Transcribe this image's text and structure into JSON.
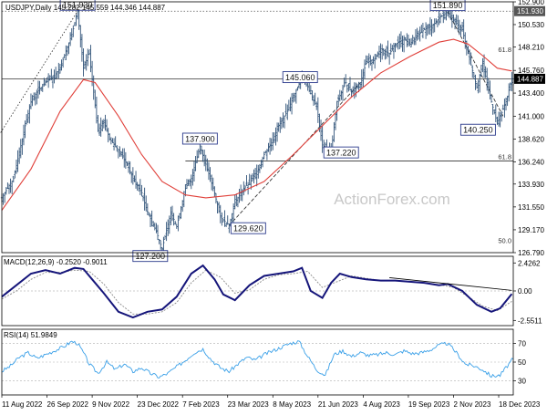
{
  "chart_data": [
    {
      "type": "line",
      "panel": "price",
      "title": "USDJPY,Daily  145.282 145.559 144.346 144.887",
      "symbol": "USDJPY",
      "timeframe": "Daily",
      "ohlc_readout": {
        "open": 145.282,
        "high": 145.559,
        "low": 144.346,
        "close": 144.887
      },
      "ylim": [
        126.79,
        152.9
      ],
      "yticks": [
        "152.900",
        "150.530",
        "148.210",
        "145.760",
        "143.400",
        "141.000",
        "138.620",
        "136.240",
        "133.930",
        "131.550",
        "129.170",
        "126.790"
      ],
      "xticks": [
        "11 Aug 2022",
        "26 Sep 2022",
        "9 Nov 2022",
        "23 Dec 2022",
        "7 Feb 2023",
        "23 Mar 2023",
        "8 May 2023",
        "21 Jun 2023",
        "4 Aug 2023",
        "19 Sep 2023",
        "2 Nov 2023",
        "18 Dec 2023"
      ],
      "series": [
        {
          "role": "price",
          "x": [
            0,
            8,
            16,
            20,
            24,
            30,
            36,
            40,
            44,
            48,
            52,
            56,
            60,
            66,
            70,
            74,
            80,
            86,
            90,
            96,
            100,
            106,
            110,
            116,
            120,
            126,
            130,
            136,
            140,
            146,
            150,
            156,
            160,
            166,
            170,
            176,
            180,
            186,
            190,
            196,
            200,
            206,
            210,
            216,
            220,
            226,
            230,
            236,
            240,
            246,
            250,
            256,
            260,
            266,
            270,
            276,
            280,
            286,
            290,
            296,
            300,
            306,
            310,
            316,
            320,
            326,
            330,
            336,
            340,
            346,
            350
          ],
          "y": [
            132.5,
            134.5,
            140.0,
            142.5,
            143.5,
            144.5,
            145.2,
            146.0,
            147.8,
            149.5,
            151.93,
            146.0,
            147.5,
            139.5,
            140.5,
            138.6,
            137.5,
            136.0,
            134.5,
            133.0,
            131.0,
            129.0,
            127.2,
            131.0,
            129.5,
            133.5,
            134.5,
            137.9,
            136.0,
            133.0,
            130.5,
            129.62,
            132.0,
            133.5,
            134.0,
            135.5,
            137.0,
            138.5,
            140.0,
            141.5,
            143.0,
            145.06,
            144.0,
            142.0,
            138.0,
            137.22,
            142.5,
            144.5,
            143.5,
            144.5,
            146.5,
            147.0,
            148.0,
            147.5,
            148.5,
            149.0,
            148.5,
            149.5,
            150.0,
            150.5,
            151.2,
            151.89,
            151.0,
            150.0,
            147.5,
            144.0,
            146.5,
            142.5,
            140.25,
            142.5,
            144.887
          ]
        },
        {
          "role": "moving-average",
          "x": [
            0,
            20,
            40,
            56,
            64,
            80,
            96,
            110,
            126,
            140,
            160,
            180,
            200,
            220,
            240,
            260,
            280,
            300,
            310,
            320,
            330,
            340,
            350
          ],
          "y": [
            131.2,
            135.5,
            141.5,
            144.8,
            144.5,
            141.0,
            137.0,
            134.2,
            132.8,
            132.5,
            132.8,
            134.2,
            137.0,
            140.0,
            143.0,
            145.5,
            147.2,
            148.7,
            149.0,
            148.5,
            147.3,
            146.0,
            145.7
          ]
        }
      ],
      "annotations": [
        {
          "label": "151.930",
          "x": 52,
          "y": 151.93
        },
        {
          "label": "137.900",
          "x": 136,
          "y": 137.9
        },
        {
          "label": "127.200",
          "x": 110,
          "y": 127.2
        },
        {
          "label": "129.620",
          "x": 156,
          "y": 129.62
        },
        {
          "label": "145.060",
          "x": 206,
          "y": 145.06
        },
        {
          "label": "137.220",
          "x": 226,
          "y": 137.22
        },
        {
          "label": "151.890",
          "x": 306,
          "y": 151.89
        },
        {
          "label": "140.250",
          "x": 340,
          "y": 140.25
        }
      ],
      "horizontal_levels": [
        {
          "value": 151.93,
          "label": "151.930",
          "style": "dotted"
        },
        {
          "value": 144.887,
          "label": "144.887",
          "style": "solid"
        },
        {
          "value": 136.34,
          "style": "solid"
        }
      ],
      "fib_labels": [
        {
          "label": "61.8",
          "value": 147.5
        },
        {
          "label": "61.8",
          "value": 136.34
        },
        {
          "label": "50.0",
          "value": 127.6
        }
      ],
      "trendlines": [
        {
          "style": "dotted",
          "from": {
            "x": -2,
            "y": 139.0
          },
          "to": {
            "x": 52,
            "y": 151.93
          }
        },
        {
          "style": "dashed",
          "from": {
            "x": 156,
            "y": 129.62
          },
          "to": {
            "x": 246,
            "y": 144.5
          }
        },
        {
          "style": "dashed",
          "from": {
            "x": 306,
            "y": 151.89
          },
          "to": {
            "x": 344,
            "y": 141.0
          }
        }
      ],
      "watermark": "ActionForex.com"
    },
    {
      "type": "line",
      "panel": "macd",
      "title": "MACD(12,26,9) -0.2520 -0.9011",
      "ylim": [
        -3.0,
        3.0
      ],
      "yticks": [
        "2.4262",
        "0.00",
        "-2.5511"
      ],
      "series": [
        {
          "role": "macd",
          "x": [
            0,
            10,
            20,
            30,
            40,
            50,
            56,
            62,
            70,
            80,
            90,
            100,
            110,
            120,
            130,
            138,
            146,
            152,
            160,
            170,
            180,
            190,
            200,
            206,
            212,
            220,
            226,
            232,
            240,
            250,
            260,
            270,
            280,
            290,
            300,
            306,
            316,
            326,
            336,
            342,
            350
          ],
          "y": [
            -0.5,
            0.5,
            1.5,
            1.8,
            1.5,
            2.0,
            1.9,
            1.0,
            -0.2,
            -1.8,
            -2.3,
            -1.8,
            -1.6,
            -0.5,
            1.5,
            2.2,
            1.0,
            -0.3,
            -0.8,
            0.5,
            1.3,
            1.5,
            1.7,
            2.0,
            0.0,
            -0.6,
            0.7,
            1.5,
            1.2,
            1.0,
            0.9,
            0.9,
            0.8,
            0.7,
            0.5,
            0.6,
            0.0,
            -1.2,
            -1.8,
            -1.5,
            -0.252
          ]
        },
        {
          "role": "signal",
          "x": [
            0,
            10,
            20,
            30,
            40,
            50,
            60,
            70,
            80,
            90,
            100,
            110,
            120,
            130,
            140,
            150,
            160,
            170,
            180,
            190,
            200,
            210,
            220,
            230,
            240,
            250,
            260,
            270,
            280,
            290,
            300,
            310,
            320,
            330,
            340,
            350
          ],
          "y": [
            -0.7,
            0.0,
            1.0,
            1.6,
            1.6,
            1.8,
            1.7,
            0.6,
            -1.0,
            -2.0,
            -2.0,
            -1.8,
            -1.0,
            0.7,
            1.8,
            1.2,
            -0.2,
            0.1,
            1.0,
            1.4,
            1.5,
            1.7,
            0.3,
            0.8,
            1.3,
            1.1,
            0.9,
            0.9,
            0.8,
            0.7,
            0.55,
            0.3,
            -0.5,
            -1.3,
            -1.7,
            -0.901
          ]
        }
      ],
      "trendline": {
        "style": "solid",
        "from": {
          "x": 266,
          "y": 1.15
        },
        "to": {
          "x": 350,
          "y": 0.05
        }
      }
    },
    {
      "type": "line",
      "panel": "rsi",
      "title": "RSI(14) 51.9849",
      "ylim": [
        15,
        85
      ],
      "yticks": [
        "70",
        "50",
        "30"
      ],
      "series": [
        {
          "role": "rsi",
          "x": [
            0,
            6,
            12,
            18,
            24,
            30,
            36,
            42,
            48,
            52,
            56,
            60,
            66,
            72,
            78,
            84,
            90,
            96,
            102,
            108,
            114,
            120,
            126,
            132,
            138,
            144,
            150,
            156,
            162,
            168,
            174,
            180,
            186,
            192,
            198,
            204,
            210,
            216,
            222,
            228,
            234,
            240,
            246,
            252,
            258,
            264,
            270,
            276,
            282,
            288,
            294,
            300,
            306,
            312,
            318,
            324,
            330,
            336,
            342,
            348,
            350
          ],
          "y": [
            40,
            46,
            55,
            60,
            54,
            58,
            62,
            66,
            72,
            70,
            60,
            48,
            38,
            50,
            42,
            48,
            40,
            44,
            38,
            34,
            38,
            45,
            52,
            60,
            64,
            52,
            44,
            40,
            48,
            55,
            52,
            58,
            62,
            66,
            70,
            72,
            56,
            42,
            36,
            58,
            62,
            56,
            60,
            57,
            58,
            60,
            58,
            62,
            59,
            60,
            63,
            68,
            70,
            60,
            48,
            46,
            42,
            35,
            36,
            48,
            52
          ]
        }
      ]
    }
  ]
}
